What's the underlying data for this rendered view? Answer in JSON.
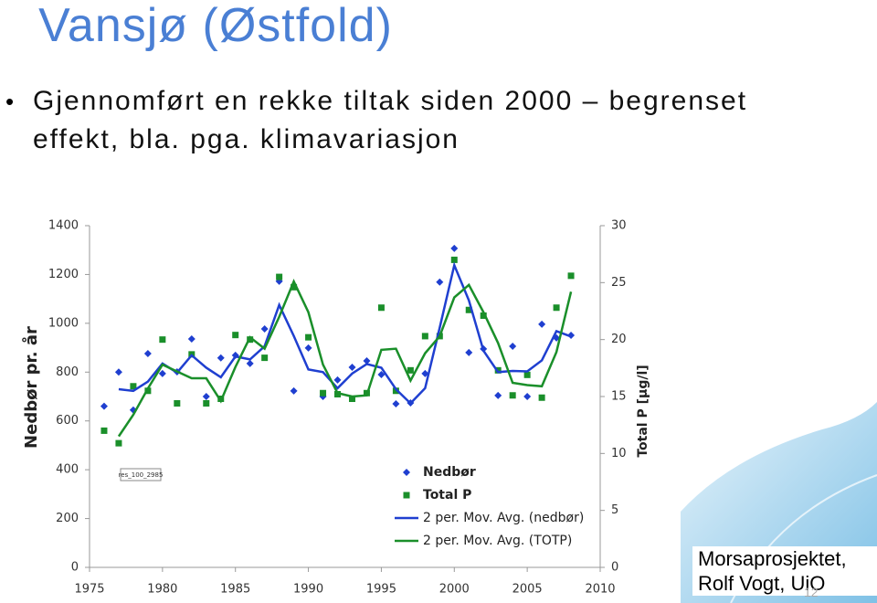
{
  "slide": {
    "title": "Vansjø (Østfold)",
    "bullet": [
      "Gjennomført en rekke tiltak siden 2000 – begrenset",
      "effekt, bla. pga. klimavariasjon"
    ],
    "footer": [
      "Morsaprosjektet,",
      "Rolf Vogt, UiO"
    ],
    "page": "12"
  },
  "chart_data": {
    "type": "line",
    "ylabel": "Nedbør pr. år",
    "y2label": "Total P [µg/l]",
    "annotation": "res_100_2985",
    "x": [
      1976,
      1977,
      1978,
      1979,
      1980,
      1981,
      1982,
      1983,
      1984,
      1985,
      1986,
      1987,
      1988,
      1989,
      1990,
      1991,
      1992,
      1993,
      1994,
      1995,
      1996,
      1997,
      1998,
      1999,
      2000,
      2001,
      2002,
      2003,
      2004,
      2005,
      2006,
      2007,
      2008
    ],
    "xlim": [
      1975,
      2010
    ],
    "xticks": [
      1975,
      1980,
      1985,
      1990,
      1995,
      2000,
      2005,
      2010
    ],
    "ylim": [
      0,
      1400
    ],
    "yticks": [
      0,
      200,
      400,
      600,
      800,
      1000,
      1200,
      1400
    ],
    "y2lim": [
      0,
      30
    ],
    "y2ticks": [
      0,
      5,
      10,
      15,
      20,
      25,
      30
    ],
    "grid": false,
    "legend": "bottom-center",
    "series": [
      {
        "name": "Nedbør",
        "color": "#1f3fd0",
        "mode": "diamond",
        "axis": "y",
        "values": [
          660,
          800,
          645,
          876,
          794,
          801,
          936,
          700,
          858,
          869,
          835,
          977,
          1172,
          723,
          899,
          700,
          768,
          820,
          846,
          790,
          670,
          674,
          794,
          1169,
          1307,
          880,
          895,
          704,
          906,
          700,
          996,
          940,
          951
        ]
      },
      {
        "name": "Total P",
        "color": "#1a8f2a",
        "mode": "square",
        "axis": "y2",
        "values": [
          12.0,
          10.9,
          15.9,
          15.5,
          20.0,
          14.4,
          18.7,
          14.4,
          14.8,
          20.4,
          20.0,
          18.4,
          25.5,
          24.6,
          20.2,
          15.3,
          15.2,
          14.8,
          15.3,
          22.8,
          15.5,
          17.3,
          20.3,
          20.3,
          27.0,
          22.6,
          22.1,
          17.3,
          15.1,
          16.9,
          14.9,
          22.8,
          25.6
        ]
      },
      {
        "name": "2 per. Mov. Avg. (nedbør)",
        "color": "#1f3fd0",
        "mode": "line",
        "axis": "y",
        "values": [
          null,
          730,
          723,
          761,
          835,
          798,
          869,
          818,
          779,
          864,
          852,
          906,
          1075,
          948,
          811,
          800,
          734,
          794,
          833,
          818,
          730,
          672,
          734,
          982,
          1238,
          1094,
          888,
          800,
          805,
          803,
          848,
          968,
          946
        ]
      },
      {
        "name": "2 per. Mov. Avg. (TOTP)",
        "color": "#1a8f2a",
        "mode": "line",
        "axis": "y2",
        "values": [
          null,
          11.5,
          13.4,
          15.7,
          17.8,
          17.2,
          16.6,
          16.6,
          14.6,
          17.6,
          20.2,
          19.2,
          22.0,
          25.1,
          22.4,
          17.8,
          15.3,
          15.0,
          15.1,
          19.1,
          19.2,
          16.4,
          18.8,
          20.3,
          23.7,
          24.8,
          22.4,
          19.7,
          16.2,
          16.0,
          15.9,
          18.9,
          24.2
        ]
      }
    ]
  }
}
